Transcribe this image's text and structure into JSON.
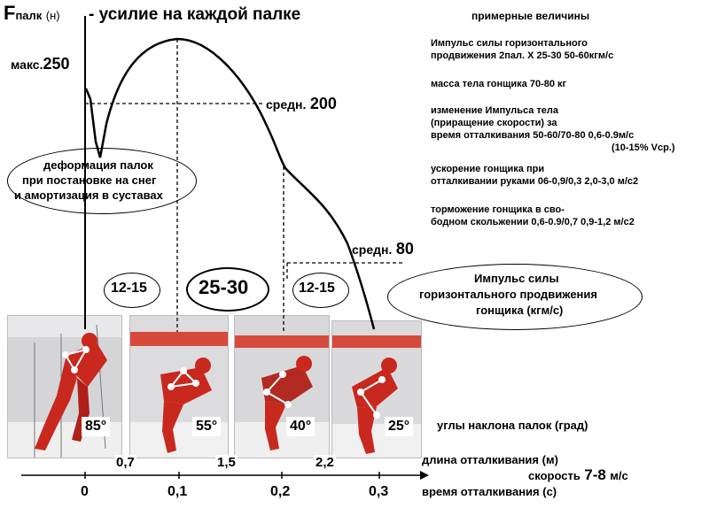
{
  "axis": {
    "force_symbol": "F",
    "force_subscript": "палк",
    "force_unit": "(н)",
    "force_title": "- усилие на каждой палке",
    "max_label": "макс.",
    "max_value": "250",
    "mid1_label": "средн.",
    "mid1_value": "200",
    "mid2_label": "средн.",
    "mid2_value": "80",
    "time_ticks": [
      "0",
      "0,1",
      "0,2",
      "0,3"
    ],
    "time_title": "время отталкивания (с)",
    "length_values": [
      "0,7",
      "1,5",
      "2,2"
    ],
    "length_title": "длина отталкивания (м)",
    "angle_values": [
      "85°",
      "55°",
      "40°",
      "25°"
    ],
    "angle_title": "углы наклона палок (град)",
    "speed_label": "скорость",
    "speed_value": "7-8",
    "speed_unit": "м/с"
  },
  "phases": {
    "left": "12-15",
    "middle": "25-30",
    "right": "12-15"
  },
  "ovals": {
    "deformation": [
      "деформация палок",
      "при постановке на снег",
      "и амортизация в суставах"
    ],
    "impulse": [
      "Импульс силы",
      "горизонтального продвижения",
      "гонщика (кгм/с)"
    ]
  },
  "info": {
    "title": "примерные величины",
    "b1": [
      "Импульс силы горизонтального",
      "продвижения   2пал. Х 25-30        50-60кгм/с"
    ],
    "b2": [
      "масса тела гонщика                              70-80 кг"
    ],
    "b3": [
      "изменение   Импульса тела",
      "(приращение скорости) за",
      "время отталкивания  50-60/70-80    0,6-0.9м/с",
      "(10-15% Vср.)"
    ],
    "b4": [
      "ускорение гонщика при",
      "отталкивании  руками 06-0,9/0,3  2,0-3,0 м/с2"
    ],
    "b5": [
      "торможение гонщика в сво-",
      "бодном скольжении   0,6-0.9/0,7    0,9-1,2 м/с2"
    ]
  },
  "colors": {
    "suit_red": "#c8281e",
    "banner_red": "#d64a3c",
    "line": "#000000"
  }
}
